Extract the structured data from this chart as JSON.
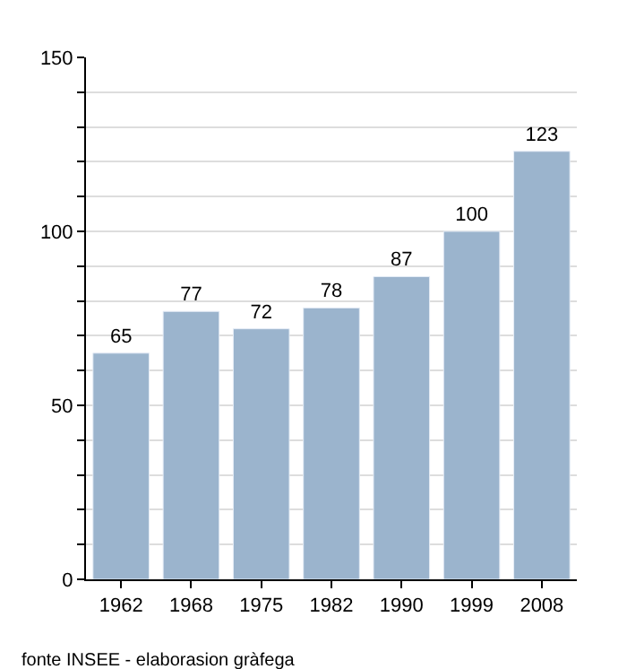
{
  "chart_data": {
    "type": "bar",
    "categories": [
      "1962",
      "1968",
      "1975",
      "1982",
      "1990",
      "1999",
      "2008"
    ],
    "values": [
      65,
      77,
      72,
      78,
      87,
      100,
      123
    ],
    "color": "#9bb4cd",
    "data_labels": true,
    "grid": "y",
    "ylim": [
      0,
      150
    ],
    "yticks": [
      0,
      {
        "value": 10,
        "label": null
      },
      {
        "value": 20,
        "label": null
      },
      {
        "value": 30,
        "label": null
      },
      {
        "value": 40,
        "label": null
      },
      50,
      {
        "value": 60,
        "label": null
      },
      {
        "value": 70,
        "label": null
      },
      {
        "value": 80,
        "label": null
      },
      {
        "value": 90,
        "label": null
      },
      100,
      {
        "value": 110,
        "label": null
      },
      {
        "value": 120,
        "label": null
      },
      {
        "value": 130,
        "label": null
      },
      {
        "value": 140,
        "label": null
      },
      150
    ],
    "annotations": [
      "fonte INSEE - elaborasion gràfega"
    ]
  }
}
